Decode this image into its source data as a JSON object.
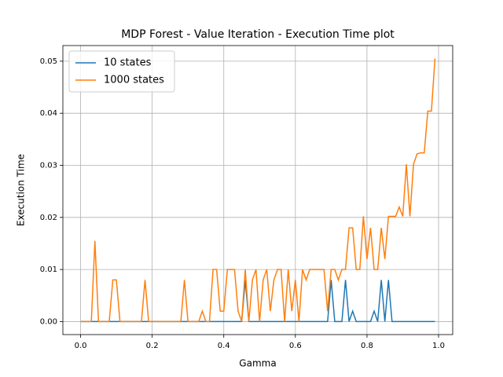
{
  "chart_data": {
    "type": "line",
    "title": "MDP Forest - Value Iteration - Execution Time plot",
    "x_label": "Gamma",
    "y_label": "Execution Time",
    "x": [
      0.0,
      0.01,
      0.02,
      0.03,
      0.04,
      0.05,
      0.06,
      0.07,
      0.08,
      0.09,
      0.1,
      0.11,
      0.12,
      0.13,
      0.14,
      0.15,
      0.16,
      0.17,
      0.18,
      0.19,
      0.2,
      0.21,
      0.22,
      0.23,
      0.24,
      0.25,
      0.26,
      0.27,
      0.28,
      0.29,
      0.3,
      0.31,
      0.32,
      0.33,
      0.34,
      0.35,
      0.36,
      0.37,
      0.38,
      0.39,
      0.4,
      0.41,
      0.42,
      0.43,
      0.44,
      0.45,
      0.46,
      0.47,
      0.48,
      0.49,
      0.5,
      0.51,
      0.52,
      0.53,
      0.54,
      0.55,
      0.56,
      0.57,
      0.58,
      0.59,
      0.6,
      0.61,
      0.62,
      0.63,
      0.64,
      0.65,
      0.66,
      0.67,
      0.68,
      0.69,
      0.7,
      0.71,
      0.72,
      0.73,
      0.74,
      0.75,
      0.76,
      0.77,
      0.78,
      0.79,
      0.8,
      0.81,
      0.82,
      0.83,
      0.84,
      0.85,
      0.86,
      0.87,
      0.88,
      0.89,
      0.9,
      0.91,
      0.92,
      0.93,
      0.94,
      0.95,
      0.96,
      0.97,
      0.98,
      0.99
    ],
    "series": [
      {
        "name": "10 states",
        "color": "#1f77b4",
        "values": [
          0,
          0,
          0,
          0,
          0,
          0,
          0,
          0,
          0,
          0,
          0,
          0,
          0,
          0,
          0,
          0,
          0,
          0,
          0,
          0,
          0,
          0,
          0,
          0,
          0,
          0,
          0,
          0,
          0,
          0,
          0,
          0,
          0,
          0,
          0,
          0,
          0,
          0,
          0,
          0,
          0,
          0,
          0,
          0,
          0,
          0,
          0.008,
          0,
          0,
          0,
          0,
          0,
          0,
          0,
          0,
          0,
          0,
          0,
          0,
          0,
          0,
          0,
          0,
          0,
          0,
          0,
          0,
          0,
          0,
          0,
          0.008,
          0,
          0,
          0,
          0.008,
          0,
          0.002,
          0,
          0,
          0,
          0,
          0,
          0.002,
          0,
          0.008,
          0,
          0.008,
          0,
          0,
          0,
          0,
          0,
          0,
          0,
          0,
          0,
          0,
          0,
          0,
          0
        ]
      },
      {
        "name": "1000 states",
        "color": "#ff7f0e",
        "values": [
          0,
          0,
          0,
          0,
          0.0155,
          0,
          0,
          0,
          0,
          0.008,
          0.008,
          0,
          0,
          0,
          0,
          0,
          0,
          0,
          0.008,
          0,
          0,
          0,
          0,
          0,
          0,
          0,
          0,
          0,
          0,
          0.008,
          0,
          0,
          0,
          0,
          0.002,
          0,
          0,
          0.01,
          0.01,
          0.002,
          0.002,
          0.01,
          0.01,
          0.01,
          0.002,
          0,
          0.01,
          0,
          0.008,
          0.01,
          0,
          0.008,
          0.01,
          0.002,
          0.008,
          0.01,
          0.01,
          0,
          0.01,
          0.002,
          0.008,
          0,
          0.01,
          0.008,
          0.01,
          0.01,
          0.01,
          0.01,
          0.01,
          0.002,
          0.01,
          0.01,
          0.008,
          0.01,
          0.01,
          0.018,
          0.018,
          0.01,
          0.01,
          0.0202,
          0.012,
          0.018,
          0.01,
          0.01,
          0.018,
          0.012,
          0.0202,
          0.0202,
          0.0202,
          0.022,
          0.0202,
          0.0302,
          0.0202,
          0.0302,
          0.0322,
          0.0324,
          0.0324,
          0.0404,
          0.0404,
          0.0505
        ]
      }
    ],
    "xlim": [
      -0.0495,
      1.0395
    ],
    "ylim": [
      -0.0025,
      0.053
    ],
    "xticks": [
      {
        "value": 0,
        "label": "0.0"
      },
      {
        "value": 0.2,
        "label": "0.2"
      },
      {
        "value": 0.4,
        "label": "0.4"
      },
      {
        "value": 0.6,
        "label": "0.6"
      },
      {
        "value": 0.8,
        "label": "0.8"
      },
      {
        "value": 1,
        "label": "1.0"
      }
    ],
    "yticks": [
      {
        "value": 0,
        "label": "0.00"
      },
      {
        "value": 0.01,
        "label": "0.01"
      },
      {
        "value": 0.02,
        "label": "0.02"
      },
      {
        "value": 0.03,
        "label": "0.03"
      },
      {
        "value": 0.04,
        "label": "0.04"
      },
      {
        "value": 0.05,
        "label": "0.05"
      }
    ],
    "grid": true,
    "legend": "upper left"
  }
}
